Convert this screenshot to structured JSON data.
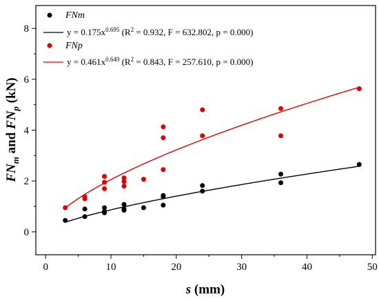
{
  "chart_data": {
    "type": "scatter",
    "xlabel": "s (mm)",
    "ylabel": "FNm and FNp (kN)",
    "xlim": [
      -1.5,
      50.5
    ],
    "ylim": [
      -0.9,
      8.9
    ],
    "xticks": [
      0,
      10,
      20,
      30,
      40,
      50
    ],
    "yticks": [
      0,
      2,
      4,
      6,
      8
    ],
    "legend_position": "top-left",
    "series": [
      {
        "name": "FNm",
        "name_sub": "m",
        "color": "#000000",
        "fit_label": "y = 0.175x",
        "fit_exp": "0.695",
        "fit_stats": " (R",
        "fit_sq": "2",
        "fit_stats2": " = 0.932, F = 632.802, p = 0.000)",
        "fit": {
          "a": 0.175,
          "b": 0.695,
          "x_range": [
            3,
            48
          ]
        },
        "x": [
          3,
          6,
          6,
          9,
          9,
          9,
          12,
          12,
          12,
          15,
          18,
          18,
          18,
          24,
          24,
          36,
          36,
          48
        ],
        "y": [
          0.45,
          0.6,
          0.9,
          0.75,
          0.8,
          0.95,
          0.85,
          0.9,
          1.08,
          0.95,
          1.05,
          1.38,
          1.43,
          1.6,
          1.82,
          1.93,
          2.27,
          2.65
        ]
      },
      {
        "name": "FNp",
        "name_sub": "p",
        "color": "#e00000",
        "fit_label": "y = 0.461x",
        "fit_exp": "0.649",
        "fit_stats": " (R",
        "fit_sq": "2",
        "fit_stats2": " = 0.843, F = 257.610, p = 0.000)",
        "fit": {
          "a": 0.461,
          "b": 0.649,
          "x_range": [
            3,
            48
          ]
        },
        "x": [
          3,
          6,
          6,
          9,
          9,
          9,
          12,
          12,
          12,
          15,
          18,
          18,
          18,
          24,
          24,
          36,
          36,
          48
        ],
        "y": [
          0.95,
          1.3,
          1.38,
          1.7,
          1.95,
          2.18,
          1.8,
          1.98,
          2.12,
          2.07,
          2.45,
          3.7,
          4.13,
          3.78,
          4.8,
          3.78,
          4.85,
          5.63
        ]
      }
    ]
  }
}
